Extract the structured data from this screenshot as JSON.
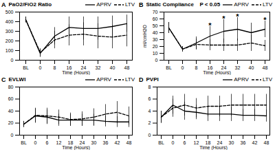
{
  "chart_data": [
    {
      "type": "line",
      "panel_label": "A",
      "title": "PaO2/FiO2 Ratio",
      "x_label": "Time (Hours)",
      "y_label": null,
      "categories": [
        "BL",
        "0",
        "8",
        "16",
        "24",
        "32",
        "40",
        "48"
      ],
      "ylim": [
        0,
        500
      ],
      "yticks": [
        0,
        100,
        200,
        300,
        400,
        500
      ],
      "legend": "top-right",
      "series": [
        {
          "name": "APRV",
          "color": "#000000",
          "line_style": "solid",
          "values": [
            420,
            70,
            250,
            340,
            330,
            330,
            350,
            380
          ],
          "errors": [
            30,
            40,
            90,
            110,
            120,
            120,
            110,
            90
          ]
        },
        {
          "name": "LTV",
          "color": "#000000",
          "line_style": "dashed",
          "values": [
            420,
            80,
            210,
            260,
            270,
            250,
            240,
            260
          ],
          "errors": [
            30,
            40,
            90,
            110,
            120,
            130,
            120,
            120
          ]
        }
      ],
      "annotations": []
    },
    {
      "type": "line",
      "panel_label": "B",
      "title": "Static Compliance",
      "x_label": "Time (Hours)",
      "y_label": "ml/cmH2O",
      "categories": [
        "BL",
        "0",
        "8",
        "16",
        "24",
        "32",
        "40",
        "48"
      ],
      "ylim": [
        0,
        70
      ],
      "yticks": [
        0,
        10,
        20,
        30,
        40,
        50,
        60,
        70
      ],
      "legend": "top-right",
      "series": [
        {
          "name": "APRV",
          "color": "#000000",
          "line_style": "solid",
          "values": [
            47,
            16,
            25,
            35,
            42,
            45,
            40,
            45
          ],
          "errors": [
            8,
            4,
            9,
            14,
            17,
            17,
            14,
            12
          ]
        },
        {
          "name": "LTV",
          "color": "#000000",
          "line_style": "dashed",
          "values": [
            47,
            16,
            23,
            22,
            22,
            22,
            25,
            21
          ],
          "errors": [
            8,
            4,
            8,
            8,
            9,
            9,
            12,
            8
          ]
        }
      ],
      "annotations": [
        {
          "x": "16",
          "y": 50,
          "text": "*"
        },
        {
          "x": "24",
          "y": 60,
          "text": "*"
        },
        {
          "x": "32",
          "y": 63,
          "text": "*"
        },
        {
          "x": "48",
          "y": 58,
          "text": "*"
        },
        {
          "text": "P < 0.05"
        }
      ]
    },
    {
      "type": "line",
      "panel_label": "C",
      "title": "EVLWI",
      "x_label": "Time (Hours)",
      "y_label": null,
      "categories": [
        "BL",
        "0",
        "6",
        "12",
        "18",
        "24",
        "30",
        "36",
        "42",
        "48"
      ],
      "ylim": [
        0,
        80
      ],
      "yticks": [
        0,
        20,
        40,
        60,
        80
      ],
      "legend": "top-right",
      "series": [
        {
          "name": "APRV",
          "color": "#000000",
          "line_style": "solid",
          "values": [
            18,
            32,
            30,
            25,
            25,
            25,
            25,
            23,
            22,
            22
          ],
          "errors": [
            5,
            12,
            12,
            10,
            10,
            10,
            10,
            9,
            9,
            9
          ]
        },
        {
          "name": "LTV",
          "color": "#000000",
          "line_style": "dashed",
          "values": [
            18,
            33,
            32,
            30,
            26,
            27,
            30,
            35,
            38,
            32
          ],
          "errors": [
            5,
            12,
            13,
            12,
            11,
            12,
            14,
            16,
            18,
            15
          ]
        }
      ],
      "annotations": []
    },
    {
      "type": "line",
      "panel_label": "D",
      "title": "PVPI",
      "x_label": "Time (Hours)",
      "y_label": null,
      "categories": [
        "BL",
        "0",
        "6",
        "12",
        "18",
        "24",
        "30",
        "36",
        "42",
        "48"
      ],
      "ylim": [
        0,
        8
      ],
      "yticks": [
        0,
        2,
        4,
        6,
        8
      ],
      "legend": "top-right",
      "series": [
        {
          "name": "APRV",
          "color": "#000000",
          "line_style": "solid",
          "values": [
            3,
            5,
            4,
            3.8,
            3.5,
            3.5,
            3.5,
            3.3,
            3.3,
            3.2
          ],
          "errors": [
            1,
            1.5,
            1.5,
            1.2,
            1.2,
            1.2,
            1.2,
            1,
            1,
            1
          ]
        },
        {
          "name": "LTV",
          "color": "#000000",
          "line_style": "dashed",
          "values": [
            3,
            4.5,
            5,
            4.5,
            4.8,
            4.8,
            5,
            5,
            5,
            5
          ],
          "errors": [
            1,
            1.5,
            1.8,
            1.6,
            1.7,
            1.7,
            1.8,
            1.8,
            1.8,
            1.8
          ]
        }
      ],
      "annotations": []
    }
  ]
}
